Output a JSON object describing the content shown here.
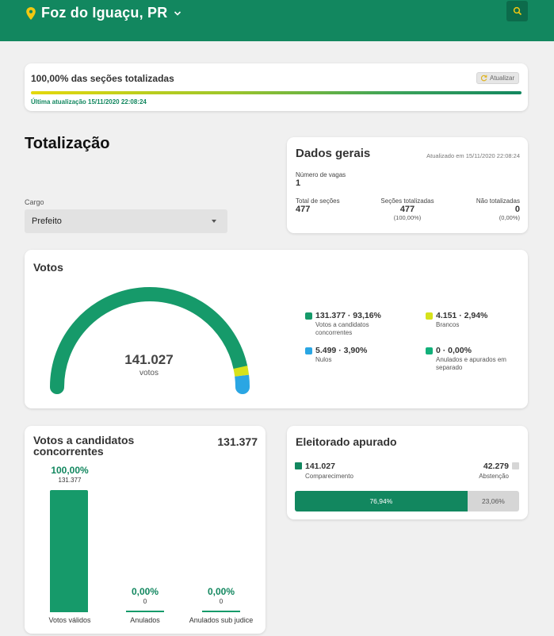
{
  "header": {
    "city": "Foz do Iguaçu, PR",
    "brand_color": "#12875f"
  },
  "progress": {
    "title": "100,00% das seções totalizadas",
    "refresh_label": "Atualizar",
    "last_update": "Última atualização 15/11/2020 22:08:24",
    "percent": 1.0
  },
  "page": {
    "title": "Totalização",
    "cargo_label": "Cargo",
    "cargo_value": "Prefeito"
  },
  "dados_gerais": {
    "title": "Dados gerais",
    "updated": "Atualizado em 15/11/2020 22:08:24",
    "vagas_label": "Número de vagas",
    "vagas_value": "1",
    "total_secoes_label": "Total de seções",
    "total_secoes_value": "477",
    "secoes_totalizadas_label": "Seções totalizadas",
    "secoes_totalizadas_value": "477",
    "secoes_totalizadas_pct": "(100,00%)",
    "nao_totalizadas_label": "Não totalizadas",
    "nao_totalizadas_value": "0",
    "nao_totalizadas_pct": "(0,00%)"
  },
  "votos": {
    "title": "Votos",
    "total": "141.027",
    "total_label": "votos",
    "legend": [
      {
        "value": "131.377 · 93,16%",
        "label": "Votos a candidatos concorrentes",
        "color": "#169a6a",
        "fraction": 0.9316
      },
      {
        "value": "4.151 · 2,94%",
        "label": "Brancos",
        "color": "#d6e21b",
        "fraction": 0.0294
      },
      {
        "value": "5.499 · 3,90%",
        "label": "Nulos",
        "color": "#2aa6e3",
        "fraction": 0.039
      },
      {
        "value": "0 · 0,00%",
        "label": "Anulados e apurados em separado",
        "color": "#12b07a",
        "fraction": 0.0
      }
    ]
  },
  "candidatos": {
    "title": "Votos a candidatos concorrentes",
    "total": "131.377",
    "columns": [
      {
        "pct": "100,00%",
        "num": "131.377",
        "label": "Votos válidos",
        "fraction": 1.0
      },
      {
        "pct": "0,00%",
        "num": "0",
        "label": "Anulados",
        "fraction": 0.0
      },
      {
        "pct": "0,00%",
        "num": "0",
        "label": "Anulados sub judice",
        "fraction": 0.0
      }
    ]
  },
  "eleitorado": {
    "title": "Eleitorado apurado",
    "comparecimento_value": "141.027",
    "comparecimento_label": "Comparecimento",
    "abstencao_value": "42.279",
    "abstencao_label": "Abstenção",
    "comparecimento_pct": "76,94%",
    "abstencao_pct": "23,06%",
    "comparecimento_fraction": 0.7694
  }
}
